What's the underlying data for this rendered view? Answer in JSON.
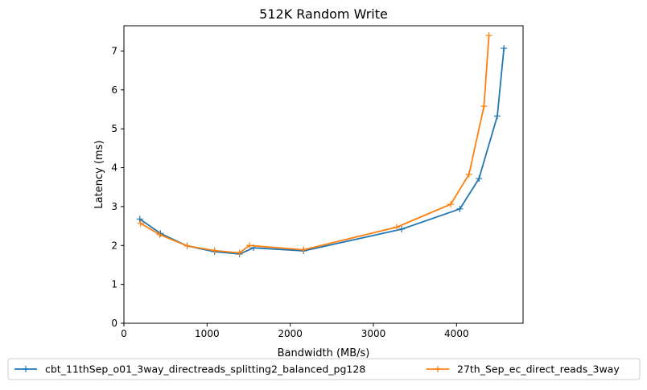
{
  "chart_data": {
    "type": "line",
    "title": "512K  Random Write",
    "xlabel": "Bandwidth (MB/s)",
    "ylabel": "Latency (ms)",
    "xlim": [
      0,
      4800
    ],
    "ylim": [
      0,
      7.65
    ],
    "xticks": [
      0,
      1000,
      2000,
      3000,
      4000
    ],
    "yticks": [
      0,
      1,
      2,
      3,
      4,
      5,
      6,
      7
    ],
    "grid": false,
    "legend": "bottom, below plot, two columns",
    "series": [
      {
        "name": "cbt_11thSep_o01_3way_directreads_splitting2_balanced_pg128",
        "color": "#1f77b4",
        "marker": "+",
        "x": [
          190,
          440,
          760,
          1090,
          1390,
          1560,
          2160,
          3340,
          4040,
          4270,
          4490,
          4570
        ],
        "y": [
          2.68,
          2.31,
          1.99,
          1.84,
          1.78,
          1.94,
          1.86,
          2.42,
          2.94,
          3.72,
          5.33,
          7.07
        ]
      },
      {
        "name": "27th_Sep_ec_direct_reads_3way",
        "color": "#ff7f0e",
        "marker": "+",
        "x": [
          200,
          430,
          760,
          1090,
          1390,
          1510,
          2160,
          3280,
          3930,
          4150,
          4330,
          4390
        ],
        "y": [
          2.57,
          2.28,
          1.99,
          1.87,
          1.81,
          2.0,
          1.89,
          2.47,
          3.06,
          3.83,
          5.58,
          7.4
        ]
      }
    ]
  }
}
